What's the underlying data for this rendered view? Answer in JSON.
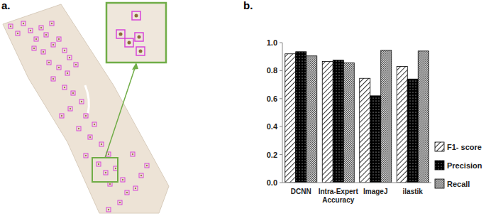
{
  "panel_labels": [
    "a.",
    "b."
  ],
  "chart_data": {
    "type": "bar",
    "categories": [
      "DCNN",
      "Intra-Expert Accuracy",
      "ImageJ",
      "ilastik"
    ],
    "series": [
      {
        "name": "F1- score",
        "color": "#ffffff",
        "values": [
          0.92,
          0.865,
          0.745,
          0.83
        ]
      },
      {
        "name": "Precision",
        "color": "#000000",
        "values": [
          0.935,
          0.875,
          0.62,
          0.74
        ]
      },
      {
        "name": "Recall",
        "color": "#d9d9d9",
        "values": [
          0.905,
          0.855,
          0.945,
          0.94
        ]
      }
    ],
    "ylim": [
      0,
      1.0
    ],
    "yticks": [
      {
        "value": 0,
        "label": "0.0"
      },
      0.2,
      0.4,
      0.6,
      0.8,
      {
        "value": 1.0,
        "label": "1.0"
      }
    ],
    "grid": false,
    "legend": "right"
  }
}
